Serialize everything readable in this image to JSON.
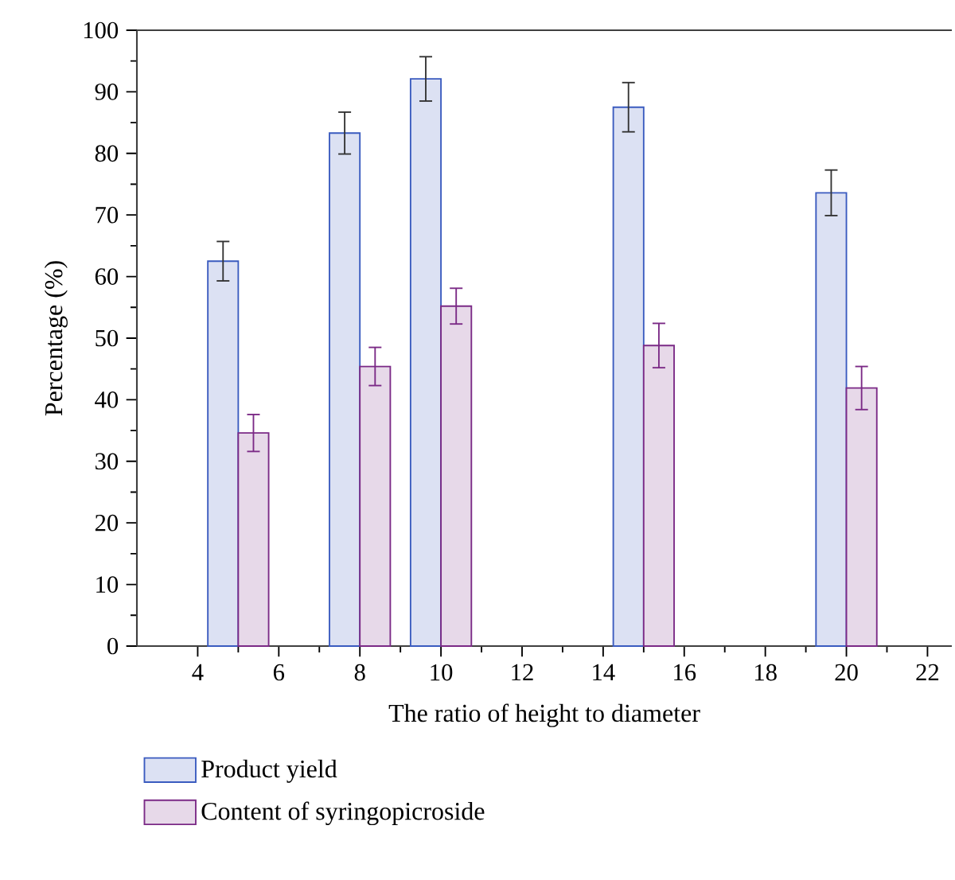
{
  "chart_data": {
    "type": "bar",
    "xlabel": "The ratio of height to diameter",
    "ylabel": "Percentage (%)",
    "x": [
      5,
      8,
      10,
      15,
      20
    ],
    "xlim": [
      2.5,
      22.6
    ],
    "xticks": [
      4,
      6,
      8,
      10,
      12,
      14,
      16,
      18,
      20,
      22
    ],
    "ylim": [
      0,
      100
    ],
    "yticks": [
      0,
      10,
      20,
      30,
      40,
      50,
      60,
      70,
      80,
      90,
      100
    ],
    "legend": "bottom",
    "series": [
      {
        "name": "Product yield",
        "color": "#3a5bbf",
        "values": [
          62.5,
          83.3,
          92.1,
          87.5,
          73.6
        ],
        "errors": [
          3.2,
          3.4,
          3.6,
          4.0,
          3.7
        ]
      },
      {
        "name": "Content of syringopicroside",
        "color": "#7b2a86",
        "values": [
          34.6,
          45.4,
          55.2,
          48.8,
          41.9
        ],
        "errors": [
          3.0,
          3.1,
          2.9,
          3.6,
          3.5
        ]
      }
    ]
  }
}
